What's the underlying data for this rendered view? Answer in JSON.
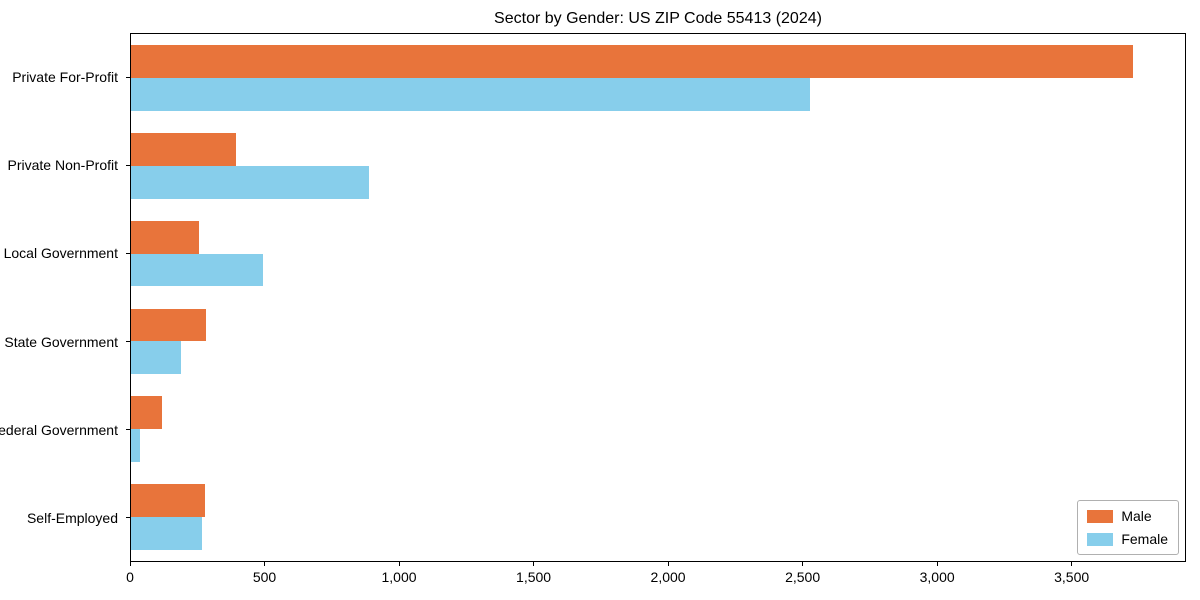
{
  "title": "Sector by Gender: US ZIP Code 55413 (2024)",
  "chart_data": {
    "type": "bar",
    "orientation": "horizontal",
    "title": "Sector by Gender: US ZIP Code 55413 (2024)",
    "xlabel": "",
    "ylabel": "",
    "categories": [
      "Private For-Profit",
      "Private Non-Profit",
      "Local Government",
      "State Government",
      "Federal Government",
      "Self-Employed"
    ],
    "series": [
      {
        "name": "Male",
        "color": "#e8743b",
        "values": [
          3730,
          390,
          255,
          280,
          115,
          275
        ]
      },
      {
        "name": "Female",
        "color": "#87ceeb",
        "values": [
          2530,
          885,
          490,
          185,
          35,
          265
        ]
      }
    ],
    "xlim": [
      0,
      3925
    ],
    "x_ticks": [
      {
        "value": 0,
        "label": "0"
      },
      {
        "value": 500,
        "label": "500"
      },
      {
        "value": 1000,
        "label": "1,000"
      },
      {
        "value": 1500,
        "label": "1,500"
      },
      {
        "value": 2000,
        "label": "2,000"
      },
      {
        "value": 2500,
        "label": "2,500"
      },
      {
        "value": 3000,
        "label": "3,000"
      },
      {
        "value": 3500,
        "label": "3,500"
      }
    ],
    "grid": false,
    "legend": {
      "position": "lower right",
      "entries": [
        "Male",
        "Female"
      ]
    }
  }
}
